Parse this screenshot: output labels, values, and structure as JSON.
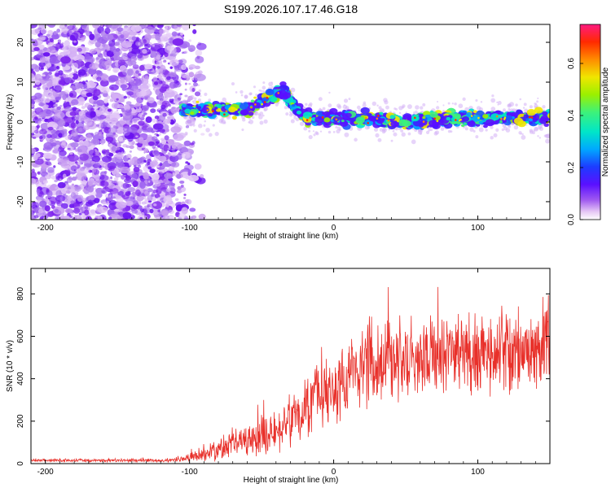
{
  "title": "S199.2026.107.17.46.G18",
  "colors": {
    "snr_line": "#e8302a",
    "colormap": [
      "#ffffff",
      "#e6c8f5",
      "#c79bf0",
      "#7d22ee",
      "#3f1cff",
      "#1d5bff",
      "#00a8ff",
      "#00e6c8",
      "#3df27a",
      "#9bf000",
      "#f0e600",
      "#ff8c00",
      "#ff2a00",
      "#ff1a80"
    ]
  },
  "chart_data": [
    {
      "type": "heatmap",
      "name": "spectrogram",
      "xlabel": "Height of straight line (km)",
      "ylabel": "Frequency (Hz)",
      "xlim": [
        -210,
        150
      ],
      "ylim": [
        -24.5,
        24.5
      ],
      "xticks": [
        -200,
        -100,
        0,
        100
      ],
      "yticks": [
        -20,
        -10,
        0,
        10,
        20
      ],
      "colorbar": {
        "label": "Normalized spectral amplitude",
        "range": [
          0,
          0.75
        ],
        "ticks": [
          "0.0",
          "0.2",
          "0.4",
          "0.6"
        ],
        "tick_values": [
          0,
          0.2,
          0.4,
          0.6
        ]
      },
      "ridge": {
        "x": [
          -100,
          -80,
          -60,
          -50,
          -40,
          -35,
          -30,
          -20,
          -10,
          0,
          20,
          50,
          100,
          150
        ],
        "freq_hz": [
          3,
          3,
          3,
          5,
          7,
          8,
          5,
          1,
          1,
          1,
          1,
          0,
          1,
          1
        ]
      },
      "noise_region_x": [
        -210,
        -100
      ]
    },
    {
      "type": "line",
      "name": "snr",
      "xlabel": "Height of straight line (km)",
      "ylabel": "SNR (10 * v/v)",
      "xlim": [
        -210,
        150
      ],
      "ylim": [
        0,
        920
      ],
      "xticks": [
        -200,
        -100,
        0,
        100
      ],
      "yticks": [
        0,
        200,
        400,
        600,
        800
      ],
      "envelope": {
        "x": [
          -210,
          -110,
          -100,
          -90,
          -80,
          -60,
          -40,
          -20,
          -10,
          0,
          20,
          40,
          60,
          80,
          100,
          120,
          150
        ],
        "mean": [
          15,
          15,
          25,
          45,
          70,
          110,
          160,
          260,
          310,
          340,
          460,
          500,
          500,
          510,
          520,
          530,
          560
        ],
        "spread": [
          8,
          10,
          20,
          40,
          60,
          90,
          120,
          160,
          170,
          200,
          230,
          240,
          230,
          230,
          230,
          230,
          240
        ]
      }
    }
  ]
}
